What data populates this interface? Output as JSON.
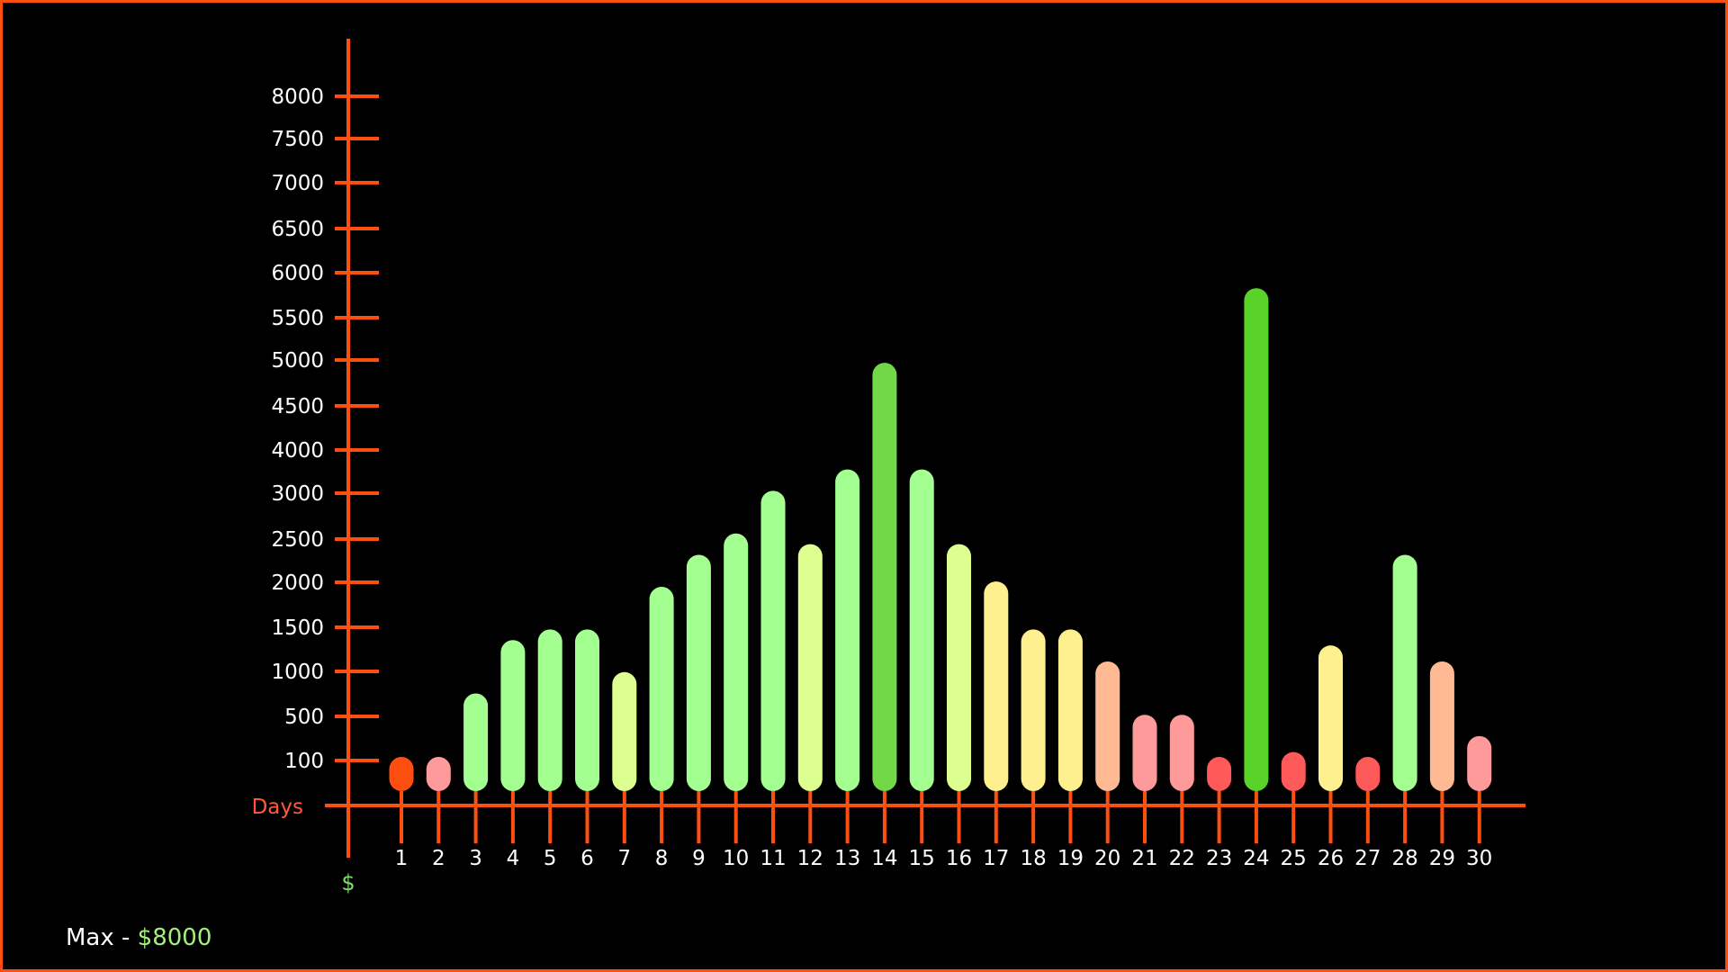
{
  "colors": {
    "background": "#000000",
    "frame": "#ff4f10",
    "axis": "#ff4f10",
    "tick_text": "#ffffff",
    "x_label": "#ff5a3c",
    "y_label": "#7fe06a",
    "max_value": "#a3f07a"
  },
  "footer": {
    "label": "Max - ",
    "value": "$8000"
  },
  "chart_data": {
    "type": "bar",
    "xlabel": "Days",
    "ylabel": "$",
    "ylim": [
      0,
      8000
    ],
    "y_ticks": [
      100,
      500,
      1000,
      1500,
      2000,
      2500,
      3000,
      4000,
      4500,
      5000,
      5500,
      6000,
      6500,
      7000,
      7500,
      8000
    ],
    "categories": [
      "1",
      "2",
      "3",
      "4",
      "5",
      "6",
      "7",
      "8",
      "9",
      "10",
      "11",
      "12",
      "13",
      "14",
      "15",
      "16",
      "17",
      "18",
      "19",
      "20",
      "21",
      "22",
      "23",
      "24",
      "25",
      "26",
      "27",
      "28",
      "29",
      "30"
    ],
    "values": [
      100,
      250,
      1000,
      1500,
      1600,
      1600,
      1200,
      2000,
      2300,
      2500,
      2900,
      2400,
      3100,
      4100,
      3100,
      2400,
      2050,
      1600,
      1600,
      1300,
      800,
      800,
      100,
      4800,
      450,
      1450,
      100,
      2300,
      1300,
      600
    ],
    "bar_colors": [
      "#ff4f10",
      "#ff9a9a",
      "#a3ff8f",
      "#a3ff8f",
      "#a3ff8f",
      "#a3ff8f",
      "#ddff8f",
      "#a3ff8f",
      "#a3ff8f",
      "#a3ff8f",
      "#a3ff8f",
      "#ddff8f",
      "#a3ff8f",
      "#72d848",
      "#a3ff8f",
      "#ddff8f",
      "#fff08f",
      "#fff08f",
      "#fff08f",
      "#ffba94",
      "#ff9a9a",
      "#ff9a9a",
      "#ff5a5a",
      "#5ad328",
      "#ff5a5a",
      "#fff08f",
      "#ff5a5a",
      "#a3ff8f",
      "#ffba94",
      "#ff9a9a"
    ]
  }
}
